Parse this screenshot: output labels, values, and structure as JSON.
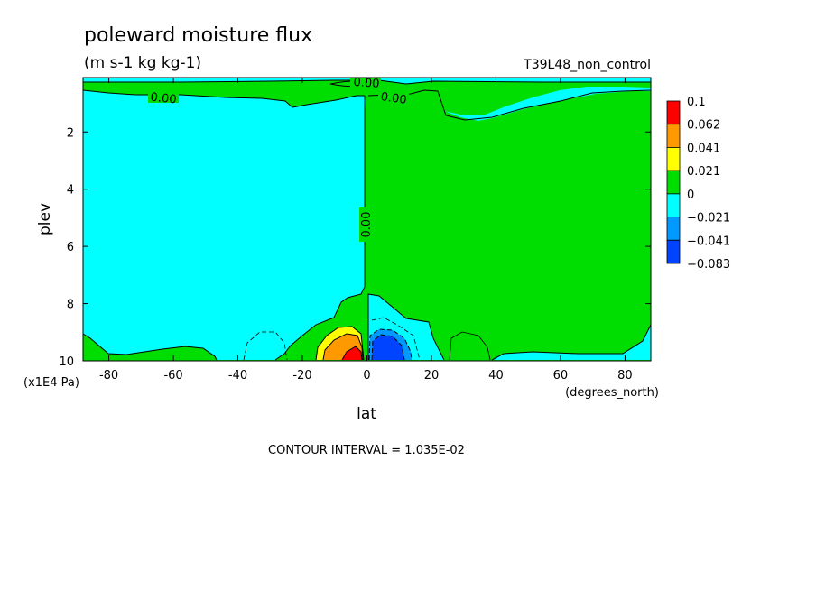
{
  "chart_data": {
    "type": "heatmap",
    "subtype": "filled-contour",
    "title": "poleward moisture flux",
    "subtitle": "(m s-1 kg kg-1)",
    "run_label": "T39L48_non_control",
    "xlabel": "lat",
    "ylabel": "plev",
    "x_units": "(degrees_north)",
    "y_units": "(x1E4 Pa)",
    "xlim": [
      -88,
      88
    ],
    "ylim": [
      10,
      0.1
    ],
    "y_inverted": true,
    "x_ticks": [
      -80,
      -60,
      -40,
      -20,
      0,
      20,
      40,
      60,
      80
    ],
    "y_ticks": [
      2,
      4,
      6,
      8,
      10
    ],
    "contour_interval_text": "CONTOUR INTERVAL = 1.035E-02",
    "contour_labels": [
      "0.00",
      "0.00",
      "0.00",
      "0.00"
    ],
    "colorbar": {
      "labels": [
        "0.1",
        "0.062",
        "0.041",
        "0.021",
        "0",
        "−0.021",
        "−0.041",
        "−0.083"
      ],
      "colors": [
        "#ff0000",
        "#ff9900",
        "#ffff00",
        "#00dd00",
        "#00ffff",
        "#0099ff",
        "#0044ff"
      ]
    },
    "fills": {
      "strong_positive": "#ff0000",
      "positive_2": "#ff9900",
      "positive_1": "#ffff00",
      "slightly_positive": "#00dd00",
      "slightly_negative": "#00ffff",
      "negative_1": "#0099ff",
      "negative_2": "#0044ff"
    }
  }
}
